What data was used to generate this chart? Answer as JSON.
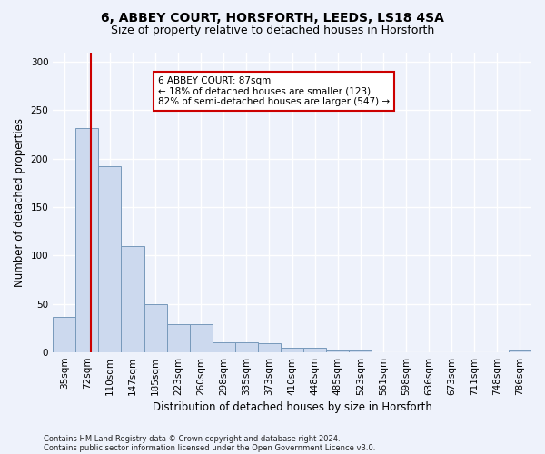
{
  "title1": "6, ABBEY COURT, HORSFORTH, LEEDS, LS18 4SA",
  "title2": "Size of property relative to detached houses in Horsforth",
  "xlabel": "Distribution of detached houses by size in Horsforth",
  "ylabel": "Number of detached properties",
  "categories": [
    "35sqm",
    "72sqm",
    "110sqm",
    "147sqm",
    "185sqm",
    "223sqm",
    "260sqm",
    "298sqm",
    "335sqm",
    "373sqm",
    "410sqm",
    "448sqm",
    "485sqm",
    "523sqm",
    "561sqm",
    "598sqm",
    "636sqm",
    "673sqm",
    "711sqm",
    "748sqm",
    "786sqm"
  ],
  "values": [
    37,
    232,
    192,
    110,
    50,
    29,
    29,
    10,
    10,
    9,
    5,
    5,
    2,
    2,
    0,
    0,
    0,
    0,
    0,
    0,
    2
  ],
  "bar_color": "#ccd9ee",
  "bar_edge_color": "#7799bb",
  "red_line_x": 1.18,
  "red_line_color": "#cc0000",
  "annotation_text": "6 ABBEY COURT: 87sqm\n← 18% of detached houses are smaller (123)\n82% of semi-detached houses are larger (547) →",
  "annotation_box_color": "#ffffff",
  "annotation_box_edge": "#cc0000",
  "footnote1": "Contains HM Land Registry data © Crown copyright and database right 2024.",
  "footnote2": "Contains public sector information licensed under the Open Government Licence v3.0.",
  "background_color": "#eef2fb",
  "ylim": [
    0,
    310
  ],
  "yticks": [
    0,
    50,
    100,
    150,
    200,
    250,
    300
  ],
  "grid_color": "#ffffff",
  "title1_fontsize": 10,
  "title2_fontsize": 9,
  "xlabel_fontsize": 8.5,
  "ylabel_fontsize": 8.5,
  "tick_fontsize": 7.5,
  "annot_fontsize": 7.5,
  "footnote_fontsize": 6.0
}
